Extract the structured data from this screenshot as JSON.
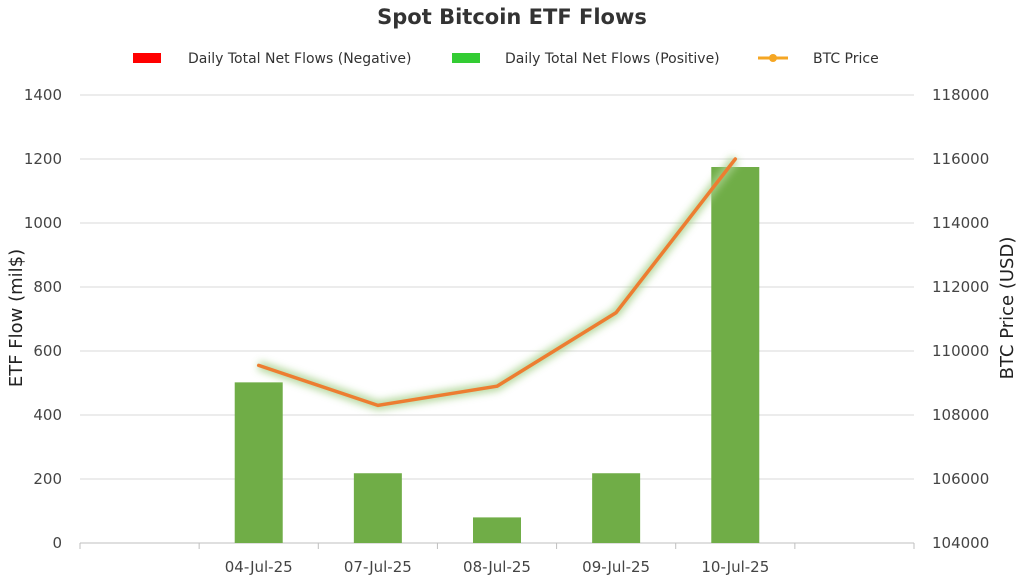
{
  "chart_data": {
    "type": "bar",
    "title": "Spot Bitcoin ETF Flows",
    "categories": [
      "04-Jul-25",
      "07-Jul-25",
      "08-Jul-25",
      "09-Jul-25",
      "10-Jul-25"
    ],
    "series": [
      {
        "name": "Daily Total Net Flows (Negative)",
        "type": "bar",
        "axis": "left",
        "color": "#ff0000",
        "values": [
          0,
          0,
          0,
          0,
          0
        ]
      },
      {
        "name": "Daily Total Net Flows (Positive)",
        "type": "bar",
        "axis": "left",
        "color": "#70ad47",
        "legend_color": "#33cc33",
        "values": [
          502,
          218,
          80,
          218,
          1175
        ]
      },
      {
        "name": "BTC Price",
        "type": "line",
        "axis": "right",
        "color": "#ed7d31",
        "legend_color": "#f5a623",
        "values": [
          109550,
          108300,
          108900,
          111200,
          116000
        ]
      }
    ],
    "ylabel": "ETF Flow (mil$)",
    "y2label": "BTC Price (USD)",
    "ylim": [
      0,
      1400
    ],
    "yticks": [
      0,
      200,
      400,
      600,
      800,
      1000,
      1200,
      1400
    ],
    "y2lim": [
      104000,
      118000
    ],
    "y2ticks": [
      104000,
      106000,
      108000,
      110000,
      112000,
      114000,
      116000,
      118000
    ],
    "grid": true,
    "legend_position": "top-center"
  }
}
